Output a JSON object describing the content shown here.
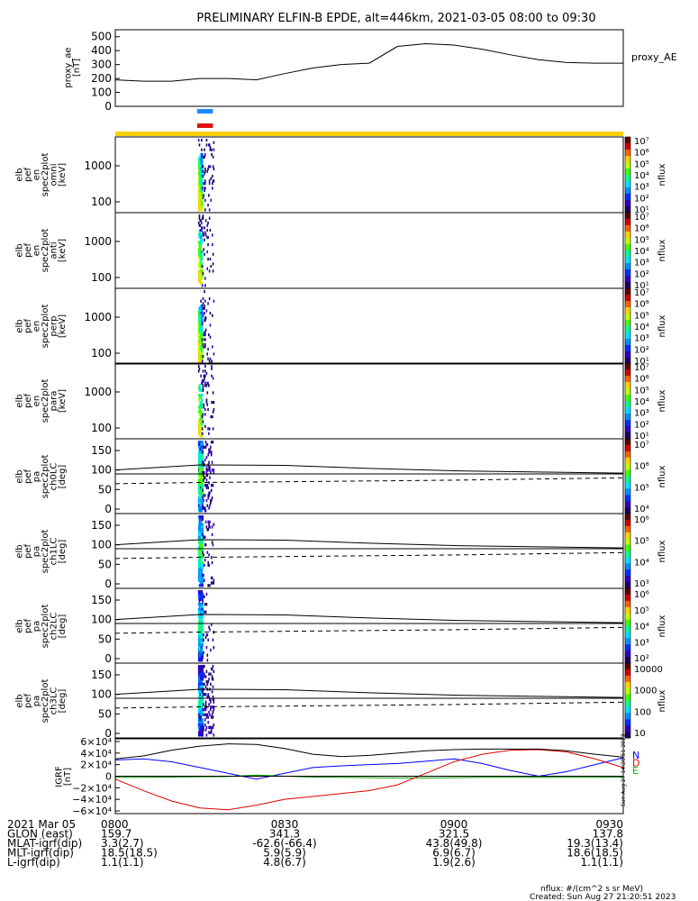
{
  "title": "PRELIMINARY ELFIN-B EPDE, alt=446km, 2021-03-05 08:00 to 09:30",
  "chart_data": [
    {
      "type": "line",
      "panel": "proxy_ae",
      "ylabel": [
        "proxy_ae",
        "[nT]"
      ],
      "yticks": [
        "500",
        "400",
        "300",
        "200",
        "100",
        "0"
      ],
      "ylim": [
        0,
        550
      ],
      "x_minutes": [
        0,
        5,
        10,
        15,
        20,
        25,
        30,
        35,
        40,
        45,
        50,
        55,
        60,
        65,
        70,
        75,
        80,
        85,
        90
      ],
      "values": [
        190,
        180,
        180,
        200,
        200,
        190,
        235,
        275,
        300,
        310,
        430,
        450,
        440,
        410,
        370,
        335,
        315,
        310,
        310
      ],
      "legend": "proxy_AE"
    },
    {
      "type": "bar",
      "panel": "science-zone-bars",
      "bars": [
        {
          "color": "#1a8cff",
          "x_start": 14.5,
          "x_end": 17.3
        },
        {
          "color": "#e01010",
          "x_start": 14.5,
          "x_end": 17.3
        },
        {
          "color": "#f5d000",
          "x_start": 0,
          "x_end": 90
        }
      ]
    },
    {
      "type": "heatmap",
      "panel": "energy-spectrograms",
      "x_active": [
        14.5,
        17.3
      ],
      "panels": [
        {
          "label": [
            "elb",
            "pef",
            "en",
            "spec2plot",
            "omni",
            "[keV]"
          ],
          "yticks": [
            "1000",
            "100"
          ],
          "colorbar": {
            "ticks": [
              "10^7",
              "10^6",
              "10^5",
              "10^4",
              "10^3",
              "10^2",
              "10^1"
            ],
            "label": "nflux"
          }
        },
        {
          "label": [
            "elb",
            "pef",
            "en",
            "spec2plot",
            "anti",
            "[keV]"
          ],
          "yticks": [
            "1000",
            "100"
          ],
          "colorbar": {
            "ticks": [
              "10^7",
              "10^6",
              "10^5",
              "10^4",
              "10^3",
              "10^2",
              "10^1"
            ],
            "label": "nflux"
          }
        },
        {
          "label": [
            "elb",
            "pef",
            "en",
            "spec2plot",
            "perp",
            "[keV]"
          ],
          "yticks": [
            "1000",
            "100"
          ],
          "colorbar": {
            "ticks": [
              "10^7",
              "10^6",
              "10^5",
              "10^4",
              "10^3",
              "10^2",
              "10^1"
            ],
            "label": "nflux"
          }
        },
        {
          "label": [
            "elb",
            "pef",
            "en",
            "spec2plot",
            "para",
            "[keV]"
          ],
          "yticks": [
            "1000",
            "100"
          ],
          "colorbar": {
            "ticks": [
              "10^7",
              "10^6",
              "10^5",
              "10^4",
              "10^3",
              "10^2",
              "10^1"
            ],
            "label": "nflux"
          }
        }
      ]
    },
    {
      "type": "heatmap",
      "panel": "pitch-angle-spectrograms",
      "yticks": [
        "150",
        "100",
        "50",
        "0"
      ],
      "ylim": [
        0,
        180
      ],
      "x_active": [
        14.5,
        17.3
      ],
      "lc_solid_x": [
        0,
        15,
        30,
        45,
        60,
        75,
        90
      ],
      "lc_solid_y": [
        100,
        113,
        112,
        104,
        98,
        95,
        92
      ],
      "lc_dashed_y": [
        65,
        68,
        70,
        72,
        74,
        77,
        80
      ],
      "panels": [
        {
          "label": [
            "elb",
            "pef",
            "pa",
            "spec2plot",
            "ch0LC",
            "[deg]"
          ],
          "colorbar": {
            "ticks": [
              "10^7",
              "10^6",
              "10^5",
              "10^4"
            ],
            "label": "nflux"
          }
        },
        {
          "label": [
            "elb",
            "pef",
            "pa",
            "spec2plot",
            "ch1LC",
            "[deg]"
          ],
          "colorbar": {
            "ticks": [
              "10^6",
              "10^5",
              "10^4",
              "10^3"
            ],
            "label": "nflux"
          }
        },
        {
          "label": [
            "elb",
            "pef",
            "pa",
            "spec2plot",
            "ch2LC",
            "[deg]"
          ],
          "colorbar": {
            "ticks": [
              "10^6",
              "10^5",
              "10^4",
              "10^3",
              "10^2"
            ],
            "label": "nflux"
          }
        },
        {
          "label": [
            "elb",
            "pef",
            "pa",
            "spec2plot",
            "ch3LC",
            "[deg]"
          ],
          "colorbar": {
            "ticks": [
              "10000",
              "1000",
              "100",
              "10"
            ],
            "label": "nflux"
          }
        }
      ]
    },
    {
      "type": "line",
      "panel": "igrf",
      "ylabel": [
        "IGRF",
        "[nT]"
      ],
      "yticks": [
        "6×10⁴",
        "4×10⁴",
        "2×10⁴",
        "0",
        "−2×10⁴",
        "−4×10⁴",
        "−6×10⁴"
      ],
      "ylim": [
        -60000,
        60000
      ],
      "x_minutes": [
        0,
        5,
        10,
        15,
        20,
        25,
        30,
        35,
        40,
        45,
        50,
        55,
        60,
        65,
        70,
        75,
        80,
        85,
        90
      ],
      "series": [
        {
          "name": "N",
          "color": "#0000ff",
          "values": [
            28000,
            30000,
            25000,
            15000,
            5000,
            -5000,
            5000,
            15000,
            18000,
            20000,
            22000,
            26000,
            30000,
            22000,
            10000,
            0,
            8000,
            20000,
            32000
          ]
        },
        {
          "name": "D",
          "color": "#00a000",
          "values": [
            -2000,
            -2000,
            -1500,
            -1000,
            -500,
            2000,
            0,
            -1500,
            -2000,
            -2500,
            -3000,
            -3000,
            -2500,
            -2000,
            -2000,
            -2000,
            -2000,
            -2000,
            -1500
          ]
        },
        {
          "name": "E",
          "color": "#e00000",
          "values": [
            -5000,
            -25000,
            -43000,
            -55000,
            -58000,
            -50000,
            -40000,
            -35000,
            -30000,
            -25000,
            -15000,
            5000,
            25000,
            38000,
            45000,
            46000,
            42000,
            30000,
            15000
          ]
        },
        {
          "name": "",
          "color": "#000000",
          "values": [
            30000,
            35000,
            45000,
            52000,
            56000,
            55000,
            48000,
            38000,
            34000,
            36000,
            40000,
            44000,
            46000,
            47000,
            47000,
            47000,
            44000,
            38000,
            33000
          ]
        }
      ],
      "legend": [
        "N",
        "D",
        "E"
      ],
      "side_label": "Sun Aug 27 14:20:51 2023"
    }
  ],
  "footer": {
    "rows": [
      {
        "label": "2021 Mar 05",
        "values": [
          "0800",
          "0830",
          "0900",
          "0930"
        ]
      },
      {
        "label": "GLON (east)",
        "values": [
          "159.7",
          "341.3",
          "321.5",
          "137.8"
        ]
      },
      {
        "label": "MLAT-igrf(dip)",
        "values": [
          "3.3(2.7)",
          "-62.6(-66.4)",
          "43.8(49.8)",
          "19.3(13.4)"
        ]
      },
      {
        "label": "MLT-igrf(dip)",
        "values": [
          "18.5(18.5)",
          "5.9(5.9)",
          "6.9(6.7)",
          "18.6(18.5)"
        ]
      },
      {
        "label": "L-igrf(dip)",
        "values": [
          "1.1(1.1)",
          "4.8(6.7)",
          "1.9(2.6)",
          "1.1(1.1)"
        ]
      }
    ],
    "units": "nflux: #/(cm^2 s sr MeV)",
    "created": "Created: Sun Aug 27 21:20:51 2023"
  }
}
